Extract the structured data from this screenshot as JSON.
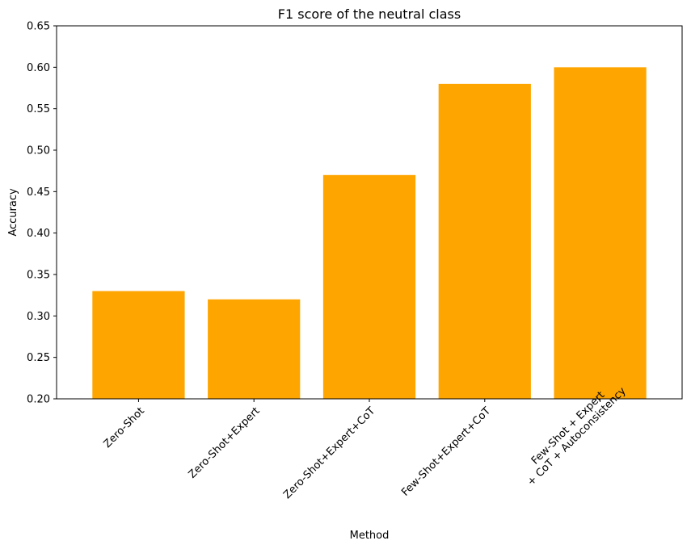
{
  "chart_data": {
    "type": "bar",
    "title": "F1 score of the neutral class",
    "xlabel": "Method",
    "ylabel": "Accuracy",
    "categories": [
      [
        "Zero-Shot"
      ],
      [
        "Zero-Shot+Expert"
      ],
      [
        "Zero-Shot+Expert+CoT"
      ],
      [
        "Few-Shot+Expert+CoT"
      ],
      [
        "Few-Shot + Expert",
        "+ CoT + Autoconsistency"
      ]
    ],
    "values": [
      0.33,
      0.32,
      0.47,
      0.58,
      0.6
    ],
    "ylim": [
      0.2,
      0.65
    ],
    "yticks": [
      "0.20",
      "0.25",
      "0.30",
      "0.35",
      "0.40",
      "0.45",
      "0.50",
      "0.55",
      "0.60",
      "0.65"
    ],
    "bar_color": "#ffa500",
    "grid": false,
    "x_tick_rotation_deg": 45
  }
}
